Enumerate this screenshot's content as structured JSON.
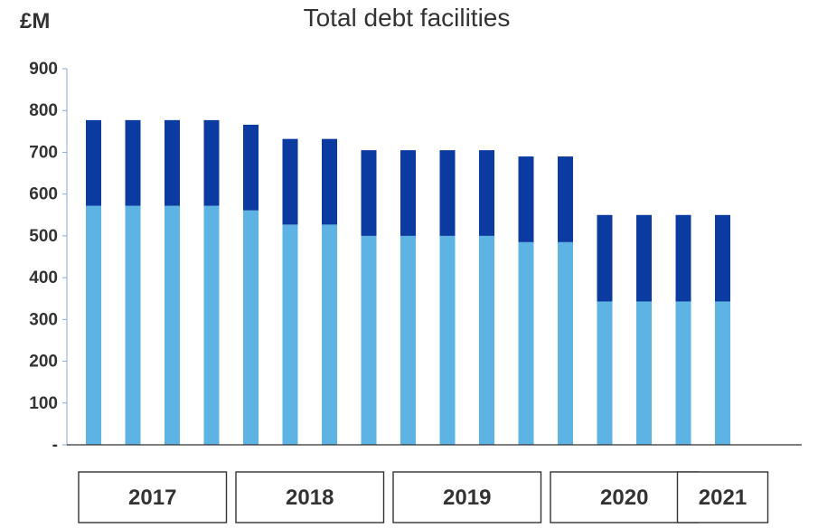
{
  "chart_data": {
    "type": "bar",
    "stacked": true,
    "title": "Total debt facilities",
    "unit_label": "£M",
    "xlabel": "",
    "ylabel": "",
    "ylim": [
      0,
      900
    ],
    "yticks": [
      {
        "value": 0,
        "label": "-"
      },
      {
        "value": 100,
        "label": "100"
      },
      {
        "value": 200,
        "label": "200"
      },
      {
        "value": 300,
        "label": "300"
      },
      {
        "value": 400,
        "label": "400"
      },
      {
        "value": 500,
        "label": "500"
      },
      {
        "value": 600,
        "label": "600"
      },
      {
        "value": 700,
        "label": "700"
      },
      {
        "value": 800,
        "label": "800"
      },
      {
        "value": 900,
        "label": "900"
      }
    ],
    "grid": false,
    "legend": "none",
    "bar_count": 17,
    "series": [
      {
        "color": "#5db3e3",
        "values": [
          572,
          572,
          572,
          572,
          561,
          527,
          527,
          500,
          500,
          500,
          500,
          485,
          485,
          343,
          343,
          343,
          343
        ]
      },
      {
        "color": "#0b3aa0",
        "values": [
          205,
          205,
          205,
          205,
          205,
          205,
          205,
          205,
          205,
          205,
          205,
          205,
          205,
          207,
          207,
          207,
          207
        ]
      }
    ],
    "year_groups": [
      {
        "label": "2017",
        "first_bar": 0,
        "last_bar": 3
      },
      {
        "label": "2018",
        "first_bar": 4,
        "last_bar": 7
      },
      {
        "label": "2019",
        "first_bar": 8,
        "last_bar": 11
      },
      {
        "label": "2020",
        "first_bar": 12,
        "last_bar": 15
      },
      {
        "label": "2021",
        "first_bar": 16,
        "last_bar": 16
      }
    ]
  }
}
